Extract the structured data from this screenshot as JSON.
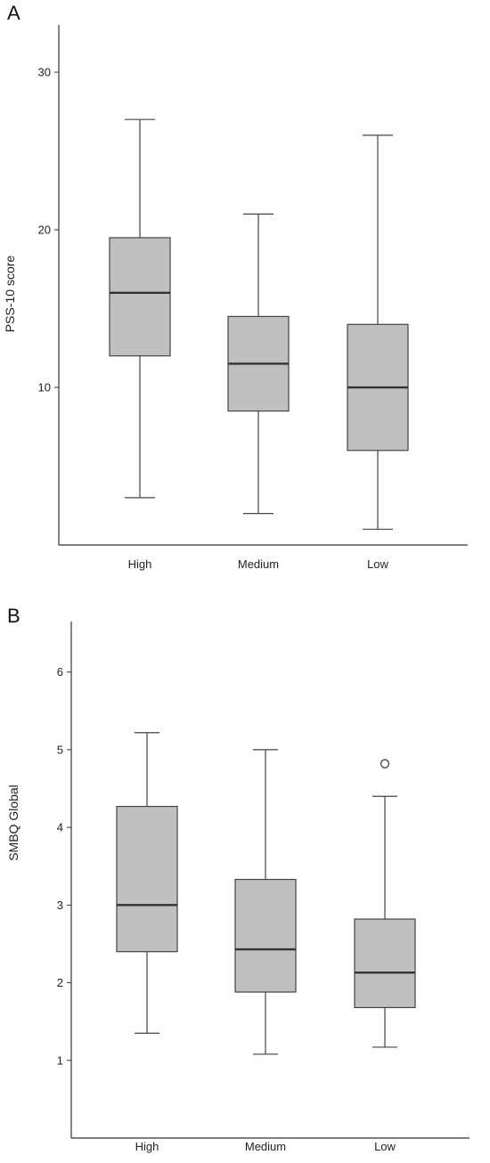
{
  "panels": [
    {
      "letter": "A"
    },
    {
      "letter": "B"
    }
  ],
  "chart_data": [
    {
      "type": "boxplot",
      "ylabel": "PSS-10 score",
      "xlabel": "",
      "ylim": [
        0,
        33
      ],
      "yticks": [
        10,
        20,
        30
      ],
      "categories": [
        "High",
        "Medium",
        "Low"
      ],
      "boxes": [
        {
          "category": "High",
          "whisker_low": 3,
          "q1": 12,
          "median": 16,
          "q3": 19.5,
          "whisker_high": 27,
          "outliers": []
        },
        {
          "category": "Medium",
          "whisker_low": 2,
          "q1": 8.5,
          "median": 11.5,
          "q3": 14.5,
          "whisker_high": 21,
          "outliers": []
        },
        {
          "category": "Low",
          "whisker_low": 1,
          "q1": 6,
          "median": 10,
          "q3": 14,
          "whisker_high": 26,
          "outliers": []
        }
      ]
    },
    {
      "type": "boxplot",
      "ylabel": "SMBQ Global",
      "xlabel": "",
      "ylim": [
        0,
        6.65
      ],
      "yticks": [
        1,
        2,
        3,
        4,
        5,
        6
      ],
      "categories": [
        "High",
        "Medium",
        "Low"
      ],
      "boxes": [
        {
          "category": "High",
          "whisker_low": 1.35,
          "q1": 2.4,
          "median": 3.0,
          "q3": 4.27,
          "whisker_high": 5.22,
          "outliers": []
        },
        {
          "category": "Medium",
          "whisker_low": 1.08,
          "q1": 1.88,
          "median": 2.43,
          "q3": 3.33,
          "whisker_high": 5.0,
          "outliers": []
        },
        {
          "category": "Low",
          "whisker_low": 1.17,
          "q1": 1.68,
          "median": 2.13,
          "q3": 2.82,
          "whisker_high": 4.4,
          "outliers": [
            4.82
          ]
        }
      ]
    }
  ]
}
